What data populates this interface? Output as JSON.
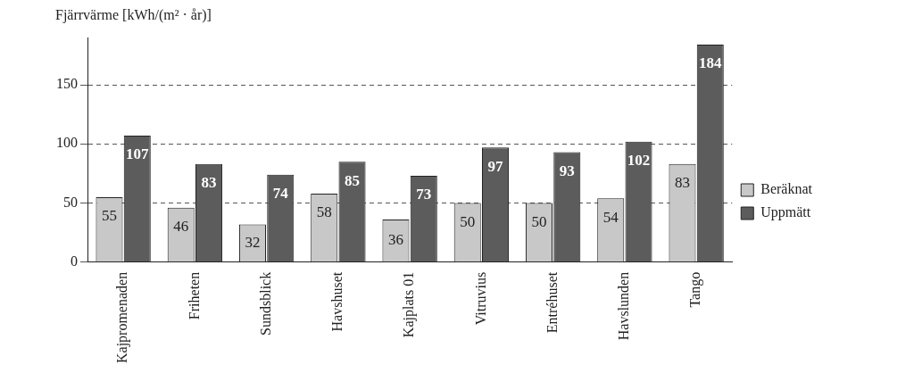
{
  "chart_data": {
    "type": "bar",
    "y_label": "Fjärrvärme [kWh/(m² · år)]",
    "categories": [
      "Kajpromenaden",
      "Friheten",
      "Sundsblick",
      "Havshuset",
      "Kajplats 01",
      "Vitruvius",
      "Entréhuset",
      "Havslunden",
      "Tango"
    ],
    "series": [
      {
        "name": "Beräknat",
        "color": "#c8c8c8",
        "values": [
          55,
          46,
          32,
          58,
          36,
          50,
          50,
          54,
          83
        ]
      },
      {
        "name": "Uppmätt",
        "color": "#5c5c5c",
        "values": [
          107,
          83,
          74,
          85,
          73,
          97,
          93,
          102,
          184
        ]
      }
    ],
    "ylim": [
      0,
      190
    ],
    "yticks": [
      0,
      50,
      100,
      150
    ],
    "grid": true,
    "legend": "right",
    "data_labels": true
  }
}
